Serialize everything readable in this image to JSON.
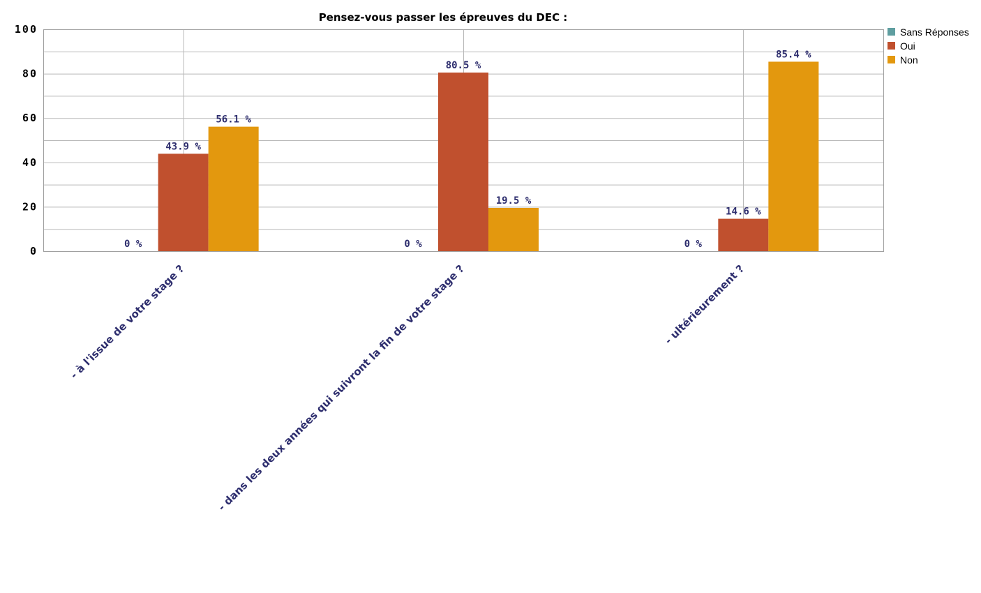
{
  "chart_data": {
    "type": "bar",
    "title": "Pensez-vous passer les épreuves du DEC :",
    "categories": [
      "- à l'issue de votre stage ?",
      "- dans les deux années qui suivront la fin de votre stage ?",
      "- ultérieurement ?"
    ],
    "series": [
      {
        "name": "Sans Réponses",
        "color": "#5f9ea0",
        "values": [
          0,
          0,
          0
        ],
        "labels": [
          "0 %",
          "0 %",
          "0 %"
        ]
      },
      {
        "name": "Oui",
        "color": "#c0502e",
        "values": [
          43.9,
          80.5,
          14.6
        ],
        "labels": [
          "43.9 %",
          "80.5 %",
          "14.6 %"
        ]
      },
      {
        "name": "Non",
        "color": "#e3980e",
        "values": [
          56.1,
          19.5,
          85.4
        ],
        "labels": [
          "56.1 %",
          "19.5 %",
          "85.4 %"
        ]
      }
    ],
    "ylim": [
      0,
      100
    ],
    "yticks": [
      0,
      20,
      40,
      60,
      80,
      100
    ],
    "xlabel": "",
    "ylabel": "",
    "grid": true,
    "legend": "top-right"
  }
}
